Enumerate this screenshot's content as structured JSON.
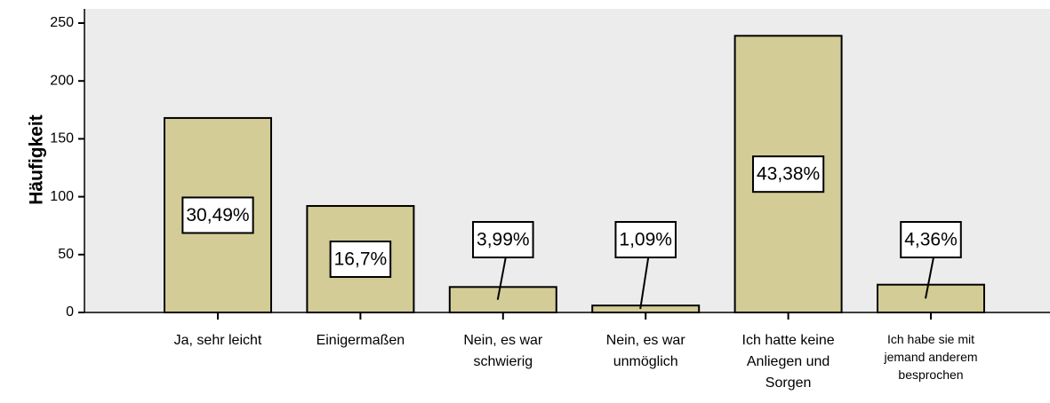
{
  "chart_data": {
    "type": "bar",
    "ylabel": "Häufigkeit",
    "categories": [
      "Ja, sehr leicht",
      "Einigermaßen",
      "Nein, es war schwierig",
      "Nein, es war unmöglich",
      "Ich hatte keine Anliegen und Sorgen",
      "Ich habe sie mit jemand anderem besprochen"
    ],
    "values": [
      168,
      92,
      22,
      6,
      239,
      24
    ],
    "percentages": [
      30.49,
      16.7,
      3.99,
      1.09,
      43.38,
      4.36
    ],
    "percentage_labels": [
      "30,49%",
      "16,7%",
      "3,99%",
      "1,09%",
      "43,38%",
      "4,36%"
    ],
    "color": "#d3cc97",
    "ylim": [
      0,
      250
    ],
    "yticks": [
      0,
      50,
      100,
      150,
      200,
      250
    ]
  }
}
